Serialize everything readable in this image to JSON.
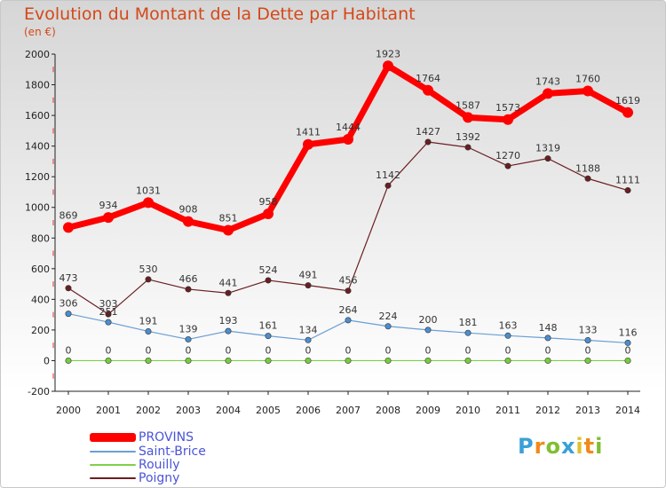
{
  "chart_data": {
    "type": "line",
    "title": "Evolution du Montant de la Dette par Habitant",
    "subtitle": "(en €)",
    "xlabel": "",
    "ylabel": "",
    "x": [
      "2000",
      "2001",
      "2002",
      "2003",
      "2004",
      "2005",
      "2006",
      "2007",
      "2008",
      "2009",
      "2010",
      "2011",
      "2012",
      "2013",
      "2014"
    ],
    "ylim": [
      -200,
      2000
    ],
    "yticks": [
      "-200",
      "0",
      "200",
      "400",
      "600",
      "800",
      "1000",
      "1200",
      "1400",
      "1600",
      "1800",
      "2000"
    ],
    "grid": false,
    "legend_position": "bottom-left",
    "series": [
      {
        "name": "PROVINS",
        "color": "#ff0000",
        "values": [
          869,
          934,
          1031,
          908,
          851,
          958,
          1411,
          1444,
          1923,
          1764,
          1587,
          1573,
          1743,
          1760,
          1619
        ]
      },
      {
        "name": "Saint-Brice",
        "color": "#6a9fd4",
        "values": [
          306,
          251,
          191,
          139,
          193,
          161,
          134,
          264,
          224,
          200,
          181,
          163,
          148,
          133,
          116
        ]
      },
      {
        "name": "Rouilly",
        "color": "#7fd04a",
        "values": [
          0,
          0,
          0,
          0,
          0,
          0,
          0,
          0,
          0,
          0,
          0,
          0,
          0,
          0,
          0
        ]
      },
      {
        "name": "Poigny",
        "color": "#6a1e22",
        "values": [
          473,
          303,
          530,
          466,
          441,
          524,
          491,
          456,
          1142,
          1427,
          1392,
          1270,
          1319,
          1188,
          1111
        ]
      }
    ]
  },
  "logo_text": "Proxiti"
}
